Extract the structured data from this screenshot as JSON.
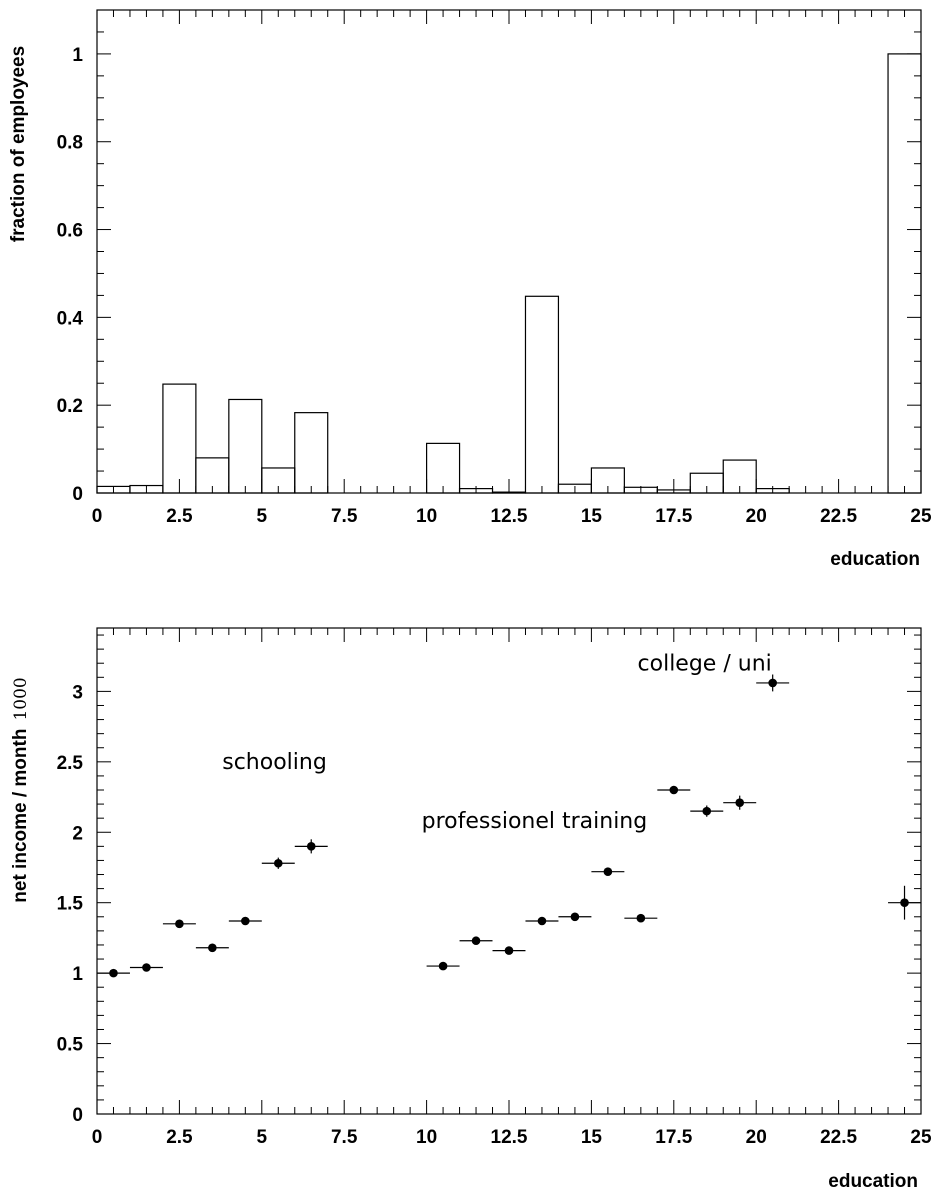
{
  "chart_data": [
    {
      "type": "bar",
      "style": "histogram-step",
      "xlabel": "education",
      "ylabel": "fraction of employees",
      "xlim": [
        0,
        25
      ],
      "ylim": [
        0,
        1.1
      ],
      "x_ticks": [
        0,
        2.5,
        5,
        7.5,
        10,
        12.5,
        15,
        17.5,
        20,
        22.5,
        25
      ],
      "x_tick_labels": [
        "0",
        "2.5",
        "5",
        "7.5",
        "10",
        "12.5",
        "15",
        "17.5",
        "20",
        "22.5",
        "25"
      ],
      "y_ticks": [
        0,
        0.2,
        0.4,
        0.6,
        0.8,
        1
      ],
      "y_tick_labels": [
        "0",
        "0.2",
        "0.4",
        "0.6",
        "0.8",
        "1"
      ],
      "bin_width": 1,
      "bins": [
        0,
        1,
        2,
        3,
        4,
        5,
        6,
        7,
        8,
        9,
        10,
        11,
        12,
        13,
        14,
        15,
        16,
        17,
        18,
        19,
        20,
        21,
        22,
        23,
        24
      ],
      "values": [
        0.015,
        0.017,
        0.248,
        0.08,
        0.213,
        0.057,
        0.183,
        0,
        0,
        0,
        0.113,
        0.01,
        0.002,
        0.448,
        0.02,
        0.057,
        0.013,
        0.007,
        0.045,
        0.075,
        0.01,
        0,
        0,
        0,
        1.0
      ],
      "grid": false
    },
    {
      "type": "scatter",
      "style": "points-with-error-bars",
      "xlabel": "education",
      "ylabel": "net income / month",
      "ylabel_suffix": "1000",
      "xlim": [
        0,
        25
      ],
      "ylim": [
        0,
        3.45
      ],
      "x_ticks": [
        0,
        2.5,
        5,
        7.5,
        10,
        12.5,
        15,
        17.5,
        20,
        22.5,
        25
      ],
      "x_tick_labels": [
        "0",
        "2.5",
        "5",
        "7.5",
        "10",
        "12.5",
        "15",
        "17.5",
        "20",
        "22.5",
        "25"
      ],
      "y_ticks": [
        0,
        0.5,
        1,
        1.5,
        2,
        2.5,
        3
      ],
      "y_tick_labels": [
        "0",
        "0.5",
        "1",
        "1.5",
        "2",
        "2.5",
        "3"
      ],
      "x_error": 0.5,
      "points": [
        {
          "x": 0.5,
          "y": 1.0,
          "yerr": 0.02
        },
        {
          "x": 1.5,
          "y": 1.04,
          "yerr": 0.02
        },
        {
          "x": 2.5,
          "y": 1.35,
          "yerr": 0.02
        },
        {
          "x": 3.5,
          "y": 1.18,
          "yerr": 0.02
        },
        {
          "x": 4.5,
          "y": 1.37,
          "yerr": 0.02
        },
        {
          "x": 5.5,
          "y": 1.78,
          "yerr": 0.04
        },
        {
          "x": 6.5,
          "y": 1.9,
          "yerr": 0.05
        },
        {
          "x": 10.5,
          "y": 1.05,
          "yerr": 0.02
        },
        {
          "x": 11.5,
          "y": 1.23,
          "yerr": 0.02
        },
        {
          "x": 12.5,
          "y": 1.16,
          "yerr": 0.02
        },
        {
          "x": 13.5,
          "y": 1.37,
          "yerr": 0.02
        },
        {
          "x": 14.5,
          "y": 1.4,
          "yerr": 0.02
        },
        {
          "x": 15.5,
          "y": 1.72,
          "yerr": 0.02
        },
        {
          "x": 16.5,
          "y": 1.39,
          "yerr": 0.02
        },
        {
          "x": 17.5,
          "y": 2.3,
          "yerr": 0.02
        },
        {
          "x": 18.5,
          "y": 2.15,
          "yerr": 0.04
        },
        {
          "x": 19.5,
          "y": 2.21,
          "yerr": 0.05
        },
        {
          "x": 20.5,
          "y": 3.06,
          "yerr": 0.06
        },
        {
          "x": 24.5,
          "y": 1.5,
          "yerr": 0.12
        }
      ],
      "annotations": [
        {
          "text": "schooling",
          "x": 3.8,
          "y": 2.45
        },
        {
          "text": "professionel training",
          "x": 9.85,
          "y": 2.03
        },
        {
          "text": "college / uni",
          "x": 16.4,
          "y": 3.15
        }
      ],
      "grid": false
    }
  ]
}
